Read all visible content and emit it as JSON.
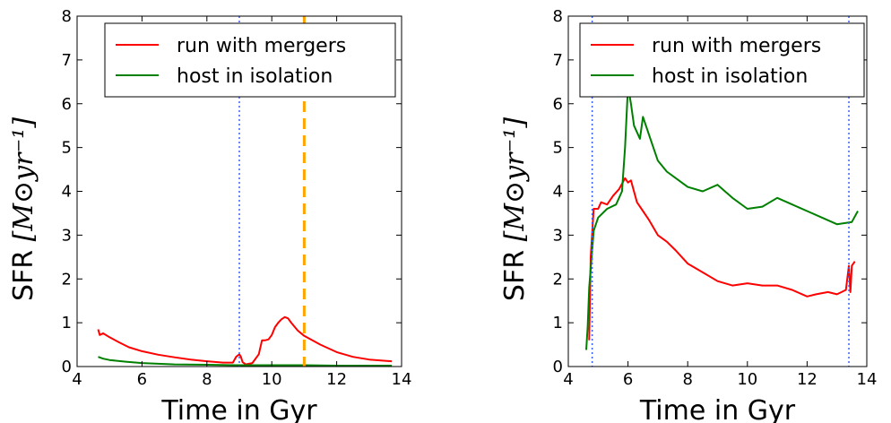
{
  "chart_data": [
    {
      "type": "line",
      "xlabel": "Time in Gyr",
      "ylabel_prefix": "SFR",
      "ylabel_math": "[M⊙yr⁻¹]",
      "xlim": [
        4,
        14
      ],
      "ylim": [
        0,
        8
      ],
      "xticks": [
        "4",
        "6",
        "8",
        "10",
        "12",
        "14"
      ],
      "yticks": [
        "0",
        "1",
        "2",
        "3",
        "4",
        "5",
        "6",
        "7",
        "8"
      ],
      "legend": {
        "placement": "top-right"
      },
      "series": [
        {
          "name": "run with mergers",
          "color": "#ff0000",
          "x": [
            4.65,
            4.7,
            4.8,
            5.0,
            5.3,
            5.6,
            6.0,
            6.5,
            7.0,
            7.5,
            8.0,
            8.5,
            8.8,
            8.9,
            9.0,
            9.05,
            9.1,
            9.2,
            9.4,
            9.6,
            9.7,
            9.8,
            9.9,
            10.0,
            10.1,
            10.2,
            10.3,
            10.4,
            10.5,
            10.6,
            10.8,
            11.0,
            11.5,
            12.0,
            12.5,
            13.0,
            13.5,
            13.7
          ],
          "y": [
            0.85,
            0.72,
            0.76,
            0.67,
            0.55,
            0.44,
            0.35,
            0.27,
            0.21,
            0.16,
            0.12,
            0.09,
            0.09,
            0.22,
            0.28,
            0.22,
            0.1,
            0.05,
            0.08,
            0.28,
            0.6,
            0.6,
            0.62,
            0.72,
            0.9,
            1.0,
            1.08,
            1.13,
            1.1,
            1.0,
            0.82,
            0.7,
            0.5,
            0.33,
            0.22,
            0.16,
            0.13,
            0.12
          ]
        },
        {
          "name": "host in isolation",
          "color": "#008000",
          "x": [
            4.65,
            4.8,
            5.0,
            5.5,
            6.0,
            7.0,
            8.0,
            9.0,
            10.0,
            11.0,
            12.0,
            13.0,
            13.7
          ],
          "y": [
            0.22,
            0.18,
            0.15,
            0.11,
            0.08,
            0.05,
            0.04,
            0.03,
            0.03,
            0.03,
            0.02,
            0.02,
            0.02
          ]
        }
      ],
      "vlines": [
        {
          "x": 9.0,
          "color": "#3a5fff",
          "style": "dotted"
        },
        {
          "x": 11.0,
          "color": "#ffa500",
          "style": "dashed"
        }
      ]
    },
    {
      "type": "line",
      "xlabel": "Time in Gyr",
      "ylabel_prefix": "SFR",
      "ylabel_math": "[M⊙yr⁻¹]",
      "xlim": [
        4,
        14
      ],
      "ylim": [
        0,
        8
      ],
      "xticks": [
        "4",
        "6",
        "8",
        "10",
        "12",
        "14"
      ],
      "yticks": [
        "0",
        "1",
        "2",
        "3",
        "4",
        "5",
        "6",
        "7",
        "8"
      ],
      "legend": {
        "placement": "top-right"
      },
      "series": [
        {
          "name": "run with mergers",
          "color": "#ff0000",
          "x": [
            4.7,
            4.75,
            4.85,
            5.0,
            5.1,
            5.3,
            5.5,
            5.7,
            5.9,
            6.0,
            6.1,
            6.3,
            6.5,
            6.7,
            7.0,
            7.3,
            7.6,
            8.0,
            8.5,
            9.0,
            9.5,
            10.0,
            10.5,
            11.0,
            11.5,
            12.0,
            12.3,
            12.7,
            13.0,
            13.3,
            13.4,
            13.45,
            13.5,
            13.6
          ],
          "y": [
            0.6,
            2.5,
            3.6,
            3.6,
            3.75,
            3.7,
            3.9,
            4.05,
            4.3,
            4.2,
            4.25,
            3.75,
            3.55,
            3.35,
            3.0,
            2.85,
            2.65,
            2.35,
            2.15,
            1.95,
            1.85,
            1.9,
            1.85,
            1.85,
            1.75,
            1.6,
            1.65,
            1.7,
            1.65,
            1.75,
            2.3,
            1.7,
            2.3,
            2.4
          ]
        },
        {
          "name": "host in isolation",
          "color": "#008000",
          "x": [
            4.6,
            4.65,
            4.7,
            4.85,
            5.0,
            5.3,
            5.6,
            5.8,
            5.9,
            6.0,
            6.1,
            6.2,
            6.4,
            6.5,
            6.7,
            7.0,
            7.3,
            7.6,
            8.0,
            8.5,
            9.0,
            9.5,
            10.0,
            10.5,
            11.0,
            11.5,
            12.0,
            12.5,
            13.0,
            13.5,
            13.7
          ],
          "y": [
            0.38,
            0.9,
            1.8,
            3.1,
            3.4,
            3.6,
            3.7,
            4.0,
            5.0,
            6.4,
            6.0,
            5.5,
            5.2,
            5.7,
            5.3,
            4.7,
            4.45,
            4.3,
            4.1,
            4.0,
            4.15,
            3.85,
            3.6,
            3.65,
            3.85,
            3.7,
            3.55,
            3.4,
            3.25,
            3.3,
            3.55
          ]
        }
      ],
      "vlines": [
        {
          "x": 4.8,
          "color": "#3a5fff",
          "style": "dotted"
        },
        {
          "x": 13.4,
          "color": "#3a5fff",
          "style": "dotted"
        }
      ]
    }
  ]
}
